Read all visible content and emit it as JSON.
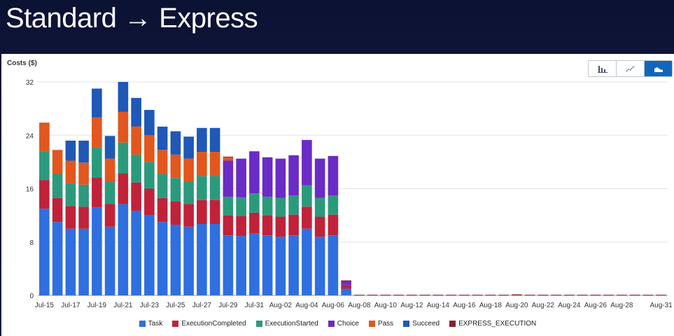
{
  "slide": {
    "title": "Standard → Express"
  },
  "toolbar": {
    "buttons": [
      {
        "icon": "bar-chart-icon",
        "active": false
      },
      {
        "icon": "line-chart-icon",
        "active": false
      },
      {
        "icon": "stacked-area-icon",
        "active": true
      }
    ]
  },
  "chart_data": {
    "type": "bar",
    "stacked": true,
    "ylabel": "Costs ($)",
    "ylim": [
      0,
      32
    ],
    "yticks": [
      0,
      8,
      16,
      24,
      32
    ],
    "grid": true,
    "legend_position": "bottom",
    "categories": [
      "Jul-15",
      "Jul-16",
      "Jul-17",
      "Jul-18",
      "Jul-19",
      "Jul-20",
      "Jul-21",
      "Jul-22",
      "Jul-23",
      "Jul-24",
      "Jul-25",
      "Jul-26",
      "Jul-27",
      "Jul-28",
      "Jul-29",
      "Jul-30",
      "Jul-31",
      "Aug-01",
      "Aug-02",
      "Aug-03",
      "Aug-04",
      "Aug-05",
      "Aug-06",
      "Aug-07",
      "Aug-08",
      "Aug-09",
      "Aug-10",
      "Aug-11",
      "Aug-12",
      "Aug-13",
      "Aug-14",
      "Aug-15",
      "Aug-16",
      "Aug-17",
      "Aug-18",
      "Aug-19",
      "Aug-20",
      "Aug-21",
      "Aug-22",
      "Aug-23",
      "Aug-24",
      "Aug-25",
      "Aug-26",
      "Aug-27",
      "Aug-28",
      "Aug-29",
      "Aug-30",
      "Aug-31"
    ],
    "x_tick_labels": [
      "Jul-15",
      "Jul-17",
      "Jul-19",
      "Jul-21",
      "Jul-23",
      "Jul-25",
      "Jul-27",
      "Jul-29",
      "Jul-31",
      "Aug-02",
      "Aug-04",
      "Aug-06",
      "Aug-08",
      "Aug-10",
      "Aug-12",
      "Aug-14",
      "Aug-16",
      "Aug-18",
      "Aug-20",
      "Aug-22",
      "Aug-24",
      "Aug-26",
      "Aug-28",
      "Aug-31"
    ],
    "series": [
      {
        "name": "Task",
        "color": "#2f6fe0",
        "values": [
          13,
          11,
          10,
          10,
          13.2,
          10.3,
          13.7,
          12.7,
          12,
          11,
          10.6,
          10.3,
          10.7,
          10.7,
          9,
          8.9,
          9.3,
          9,
          8.8,
          9,
          10,
          8.8,
          9,
          1,
          0,
          0,
          0,
          0,
          0,
          0,
          0,
          0,
          0,
          0,
          0,
          0,
          0,
          0,
          0,
          0,
          0,
          0,
          0,
          0,
          0,
          0,
          0,
          0
        ]
      },
      {
        "name": "ExecutionCompleted",
        "color": "#c0223a",
        "values": [
          4.3,
          3.6,
          3.4,
          3.3,
          4.5,
          3.4,
          4.6,
          4.2,
          4,
          3.6,
          3.5,
          3.4,
          3.6,
          3.6,
          3,
          3,
          3.1,
          3,
          3,
          3.1,
          3.3,
          3,
          3.1,
          0.6,
          0,
          0,
          0,
          0,
          0,
          0,
          0,
          0,
          0,
          0,
          0,
          0,
          0,
          0,
          0,
          0,
          0,
          0,
          0,
          0,
          0,
          0,
          0,
          0
        ]
      },
      {
        "name": "ExecutionStarted",
        "color": "#2b9a7c",
        "values": [
          4.3,
          3.6,
          3.4,
          3.3,
          4.5,
          3.4,
          4.6,
          4.2,
          4,
          3.6,
          3.5,
          3.4,
          3.6,
          3.6,
          2.8,
          2.8,
          2.9,
          2.8,
          2.8,
          2.9,
          3.2,
          2.8,
          2.9,
          0,
          0,
          0,
          0,
          0,
          0,
          0,
          0,
          0,
          0,
          0,
          0,
          0,
          0,
          0,
          0,
          0,
          0,
          0,
          0,
          0,
          0,
          0,
          0,
          0
        ]
      },
      {
        "name": "Choice",
        "color": "#6a2bc6",
        "values": [
          0,
          0,
          0,
          0,
          0,
          0,
          0,
          0,
          0,
          0,
          0,
          0,
          0,
          0,
          5.4,
          5.8,
          6.3,
          5.9,
          5.9,
          6,
          6.8,
          5.9,
          5.9,
          0.6,
          0,
          0,
          0,
          0,
          0,
          0,
          0,
          0,
          0,
          0,
          0,
          0,
          0,
          0,
          0,
          0,
          0,
          0,
          0,
          0,
          0,
          0,
          0,
          0
        ]
      },
      {
        "name": "Pass",
        "color": "#e2571d",
        "values": [
          4.3,
          3.6,
          3.4,
          3.3,
          4.5,
          3.4,
          4.6,
          4.2,
          4,
          3.6,
          3.5,
          3.4,
          3.6,
          3.6,
          0.5,
          0,
          0,
          0,
          0,
          0,
          0,
          0,
          0,
          0,
          0,
          0,
          0,
          0,
          0,
          0,
          0,
          0,
          0,
          0,
          0,
          0,
          0,
          0,
          0,
          0,
          0,
          0,
          0,
          0,
          0,
          0,
          0,
          0
        ]
      },
      {
        "name": "Succeed",
        "color": "#1f58b7",
        "values": [
          0,
          0,
          3,
          3.3,
          4.3,
          3.4,
          4.5,
          4.3,
          3.8,
          3.5,
          3.5,
          3.3,
          3.6,
          3.6,
          0,
          0,
          0,
          0,
          0,
          0,
          0,
          0,
          0,
          0,
          0,
          0,
          0,
          0,
          0,
          0,
          0,
          0,
          0,
          0,
          0,
          0,
          0,
          0,
          0,
          0,
          0,
          0,
          0,
          0,
          0,
          0,
          0,
          0
        ]
      },
      {
        "name": "EXPRESS_EXECUTION",
        "color": "#8a1f2c",
        "values": [
          0,
          0,
          0,
          0,
          0,
          0,
          0,
          0,
          0,
          0,
          0,
          0,
          0,
          0,
          0.1,
          0,
          0,
          0,
          0,
          0,
          0,
          0,
          0,
          0.05,
          0.1,
          0.1,
          0.1,
          0.1,
          0.1,
          0.1,
          0.1,
          0.1,
          0.1,
          0.1,
          0.1,
          0.1,
          0.15,
          0.1,
          0.1,
          0.1,
          0.1,
          0.1,
          0.1,
          0.1,
          0.1,
          0.1,
          0.1,
          0.1
        ]
      }
    ]
  }
}
